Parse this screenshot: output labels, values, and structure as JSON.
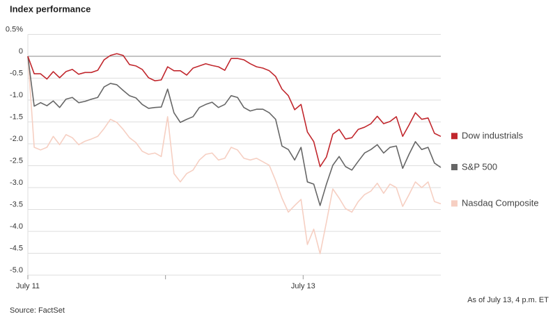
{
  "chart_data": {
    "type": "line",
    "title": "Index performance",
    "source": "Source: FactSet",
    "note": "As of July 13, 4 p.m. ET",
    "x": [
      0,
      0.3,
      0.6,
      0.9,
      1.2,
      1.5,
      1.8,
      2.1,
      2.4,
      2.7,
      3,
      3.3,
      3.6,
      3.9,
      4.2,
      4.5,
      4.8,
      5.1,
      5.4,
      5.7,
      6,
      6.3,
      6.6,
      6.9,
      7.2,
      7.5,
      7.8,
      8.1,
      8.4,
      8.7,
      9,
      9.3,
      9.6,
      9.9,
      10.2,
      10.5,
      10.8,
      11.1,
      11.4,
      11.7,
      12,
      12.3,
      12.6,
      12.9,
      13.2,
      13.5,
      13.8,
      14.1,
      14.4,
      14.7,
      15,
      15.3,
      15.6,
      15.9,
      16.2,
      16.5,
      16.8,
      17.1,
      17.4,
      17.7,
      18,
      18.3,
      18.6,
      18.9,
      19.2,
      19.5
    ],
    "xlim": [
      0,
      19.5
    ],
    "xticks": [
      {
        "value": 0,
        "label": "July 11"
      },
      {
        "value": 13,
        "label": "July 13"
      }
    ],
    "xminorticks": [
      6.5
    ],
    "ylim": [
      -5,
      0.5
    ],
    "yticks": [
      {
        "value": 0.5,
        "label": "0.5%"
      },
      0,
      -0.5,
      {
        "value": -1,
        "label": "-1.0"
      },
      -1.5,
      {
        "value": -2,
        "label": "-2.0"
      },
      -2.5,
      {
        "value": -3,
        "label": "-3.0"
      },
      -3.5,
      {
        "value": -4,
        "label": "-4.0"
      },
      -4.5,
      {
        "value": -5,
        "label": "-5.0"
      }
    ],
    "grid": true,
    "zero_line": true,
    "legend": "right",
    "series": [
      {
        "name": "Dow industrials",
        "color": "#c1272d",
        "values": [
          0,
          -0.4,
          -0.4,
          -0.52,
          -0.35,
          -0.49,
          -0.35,
          -0.3,
          -0.41,
          -0.37,
          -0.37,
          -0.32,
          -0.08,
          0.02,
          0.06,
          0.02,
          -0.19,
          -0.22,
          -0.3,
          -0.49,
          -0.56,
          -0.54,
          -0.24,
          -0.33,
          -0.33,
          -0.43,
          -0.27,
          -0.22,
          -0.17,
          -0.21,
          -0.24,
          -0.32,
          -0.05,
          -0.05,
          -0.08,
          -0.17,
          -0.24,
          -0.27,
          -0.33,
          -0.46,
          -0.75,
          -0.9,
          -1.22,
          -1.1,
          -1.73,
          -1.95,
          -2.52,
          -2.3,
          -1.78,
          -1.67,
          -1.89,
          -1.86,
          -1.67,
          -1.62,
          -1.54,
          -1.37,
          -1.54,
          -1.49,
          -1.38,
          -1.83,
          -1.57,
          -1.29,
          -1.44,
          -1.41,
          -1.76,
          -1.83
        ]
      },
      {
        "name": "S&P 500",
        "color": "#666666",
        "values": [
          0,
          -1.14,
          -1.06,
          -1.13,
          -1.02,
          -1.17,
          -0.98,
          -0.94,
          -1.06,
          -1.03,
          -0.98,
          -0.94,
          -0.7,
          -0.62,
          -0.65,
          -0.78,
          -0.9,
          -0.95,
          -1.1,
          -1.19,
          -1.17,
          -1.16,
          -0.75,
          -1.29,
          -1.51,
          -1.44,
          -1.38,
          -1.17,
          -1.1,
          -1.05,
          -1.17,
          -1.1,
          -0.9,
          -0.94,
          -1.17,
          -1.25,
          -1.21,
          -1.21,
          -1.29,
          -1.44,
          -2.05,
          -2.13,
          -2.37,
          -2.08,
          -2.87,
          -2.92,
          -3.41,
          -2.92,
          -2.49,
          -2.29,
          -2.52,
          -2.6,
          -2.4,
          -2.21,
          -2.13,
          -2.02,
          -2.21,
          -2.08,
          -2.05,
          -2.56,
          -2.24,
          -1.95,
          -2.13,
          -2.08,
          -2.44,
          -2.54
        ]
      },
      {
        "name": "Nasdaq Composite",
        "color": "#f6cfc2",
        "values": [
          0,
          -2.08,
          -2.14,
          -2.08,
          -1.83,
          -2.02,
          -1.79,
          -1.86,
          -2.02,
          -1.94,
          -1.89,
          -1.83,
          -1.65,
          -1.44,
          -1.51,
          -1.67,
          -1.86,
          -1.97,
          -2.17,
          -2.24,
          -2.21,
          -2.29,
          -1.38,
          -2.68,
          -2.87,
          -2.68,
          -2.6,
          -2.37,
          -2.24,
          -2.21,
          -2.37,
          -2.33,
          -2.08,
          -2.14,
          -2.33,
          -2.37,
          -2.33,
          -2.41,
          -2.49,
          -2.84,
          -3.24,
          -3.56,
          -3.41,
          -3.27,
          -4.3,
          -3.95,
          -4.51,
          -3.79,
          -3.03,
          -3.24,
          -3.48,
          -3.56,
          -3.32,
          -3.16,
          -3.08,
          -2.9,
          -3.13,
          -2.92,
          -3,
          -3.43,
          -3.16,
          -2.87,
          -3,
          -2.87,
          -3.32,
          -3.37
        ]
      }
    ]
  }
}
